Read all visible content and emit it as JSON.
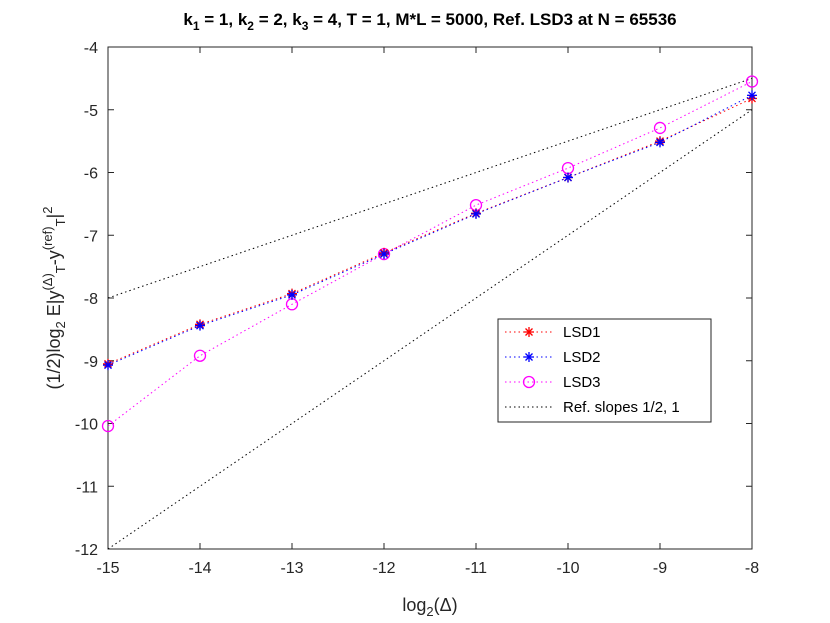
{
  "chart_data": {
    "type": "line",
    "title": {
      "parts": [
        {
          "t": "k"
        },
        {
          "t": "1",
          "sub": true
        },
        {
          "t": " = 1, k"
        },
        {
          "t": "2",
          "sub": true
        },
        {
          "t": " = 2, k"
        },
        {
          "t": "3",
          "sub": true
        },
        {
          "t": " = 4, T = 1, M*L  = 5000, Ref. LSD3 at N = 65536"
        }
      ]
    },
    "xlabel": {
      "parts": [
        {
          "t": "log"
        },
        {
          "t": "2",
          "sub": true
        },
        {
          "t": "(Δ)"
        }
      ]
    },
    "ylabel": {
      "parts": [
        {
          "t": "(1/2)log"
        },
        {
          "t": "2",
          "sub": true
        },
        {
          "t": " E|y"
        },
        {
          "t": "(Δ)",
          "sup": true
        },
        {
          "t": "T",
          "sub": true
        },
        {
          "t": "-y"
        },
        {
          "t": "(ref)",
          "sup": true
        },
        {
          "t": "T",
          "sub": true
        },
        {
          "t": "|"
        },
        {
          "t": "2",
          "sup": true
        }
      ]
    },
    "xlim": [
      -15,
      -8
    ],
    "ylim": [
      -12,
      -4
    ],
    "xticks": [
      -15,
      -14,
      -13,
      -12,
      -11,
      -10,
      -9,
      -8
    ],
    "yticks": [
      -12,
      -11,
      -10,
      -9,
      -8,
      -7,
      -6,
      -5,
      -4
    ],
    "x": [
      -15,
      -14,
      -13,
      -12,
      -11,
      -10,
      -9,
      -8
    ],
    "series": [
      {
        "name": "LSD1",
        "color": "#ff0000",
        "marker": "asterisk",
        "values": [
          -9.05,
          -8.42,
          -7.93,
          -7.28,
          -6.65,
          -6.08,
          -5.5,
          -4.82
        ]
      },
      {
        "name": "LSD2",
        "color": "#0000ff",
        "marker": "asterisk",
        "values": [
          -9.07,
          -8.44,
          -7.95,
          -7.3,
          -6.66,
          -6.08,
          -5.52,
          -4.77
        ]
      },
      {
        "name": "LSD3",
        "color": "#ff00ff",
        "marker": "circle",
        "values": [
          -10.04,
          -8.92,
          -8.1,
          -7.3,
          -6.52,
          -5.93,
          -5.29,
          -4.55
        ]
      }
    ],
    "reference_lines": {
      "name": "Ref. slopes 1/2, 1",
      "color": "#000000",
      "lines": [
        {
          "x": [
            -15,
            -8
          ],
          "y": [
            -8,
            -4.5
          ]
        },
        {
          "x": [
            -15,
            -8
          ],
          "y": [
            -12,
            -5
          ]
        }
      ]
    },
    "legend_position": "center-right",
    "grid": false
  }
}
